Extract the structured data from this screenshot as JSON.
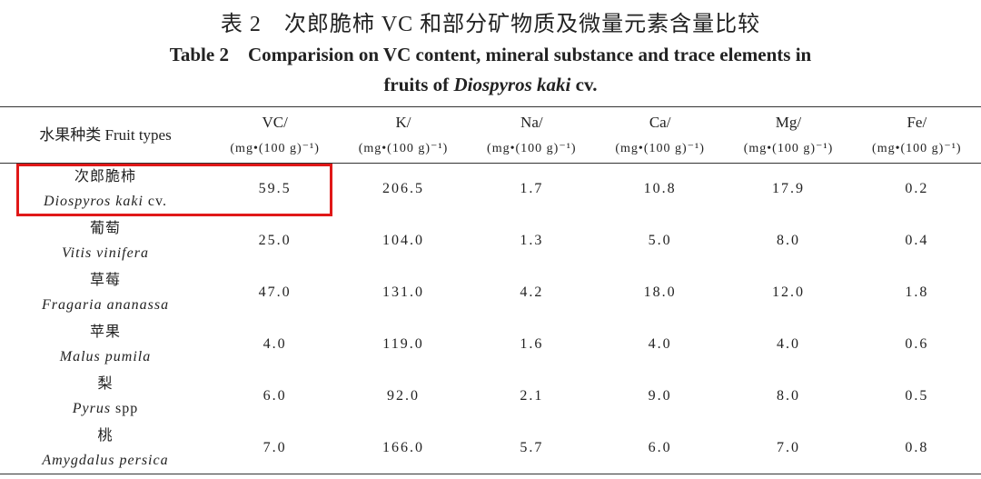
{
  "title_zh": "表 2　次郎脆柿 VC 和部分矿物质及微量元素含量比较",
  "title_en": {
    "line1": "Table 2　Comparision on VC content, mineral substance and trace elements in",
    "line2_start": "fruits of",
    "line2_italic": "Diospyros kaki",
    "line2_end": "cv."
  },
  "table": {
    "header_first": "水果种类 Fruit types",
    "columns": [
      {
        "name": "VC/",
        "unit": "(mg•(100 g)⁻¹)"
      },
      {
        "name": "K/",
        "unit": "(mg•(100 g)⁻¹)"
      },
      {
        "name": "Na/",
        "unit": "(mg•(100 g)⁻¹)"
      },
      {
        "name": "Ca/",
        "unit": "(mg•(100 g)⁻¹)"
      },
      {
        "name": "Mg/",
        "unit": "(mg•(100 g)⁻¹)"
      },
      {
        "name": "Fe/",
        "unit": "(mg•(100 g)⁻¹)"
      }
    ],
    "rows": [
      {
        "zh": "次郎脆柿",
        "latin": "Diospyros kaki",
        "suffix": "cv.",
        "values": [
          "59.5",
          "206.5",
          "1.7",
          "10.8",
          "17.9",
          "0.2"
        ]
      },
      {
        "zh": "葡萄",
        "latin": "Vitis vinifera",
        "values": [
          "25.0",
          "104.0",
          "1.3",
          "5.0",
          "8.0",
          "0.4"
        ]
      },
      {
        "zh": "草莓",
        "latin": "Fragaria ananassa",
        "values": [
          "47.0",
          "131.0",
          "4.2",
          "18.0",
          "12.0",
          "1.8"
        ]
      },
      {
        "zh": "苹果",
        "latin": "Malus pumila",
        "values": [
          "4.0",
          "119.0",
          "1.6",
          "4.0",
          "4.0",
          "0.6"
        ]
      },
      {
        "zh": "梨",
        "latin": "Pyrus",
        "suffix": "spp",
        "values": [
          "6.0",
          "92.0",
          "2.1",
          "9.0",
          "8.0",
          "0.5"
        ]
      },
      {
        "zh": "桃",
        "latin": "Amygdalus persica",
        "values": [
          "7.0",
          "166.0",
          "5.7",
          "6.0",
          "7.0",
          "0.8"
        ]
      }
    ]
  }
}
